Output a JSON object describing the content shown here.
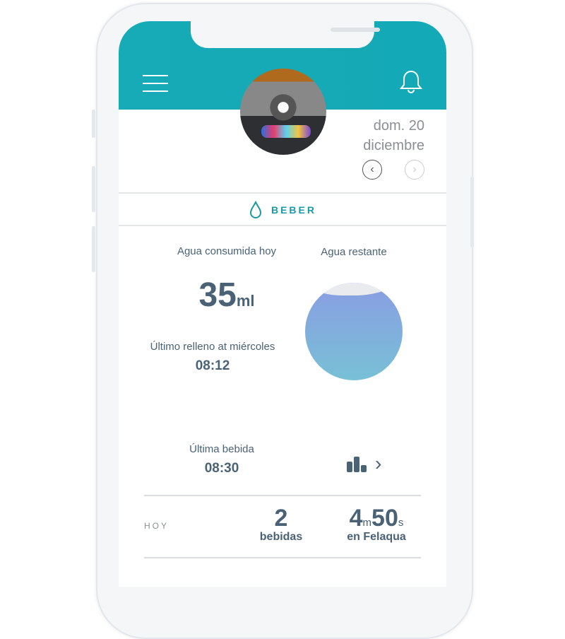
{
  "header": {
    "menu_icon": "hamburger-icon",
    "bell_icon": "bell-icon",
    "accent": "#17aab7"
  },
  "date": {
    "line1": "dom. 20",
    "line2": "diciembre",
    "prev": "‹",
    "next": "›"
  },
  "tab": {
    "label": "BEBER",
    "icon": "water-drop-icon"
  },
  "consumed": {
    "label": "Agua consumida hoy",
    "value": "35",
    "unit": "ml"
  },
  "remaining": {
    "label": "Agua restante",
    "level_percent": 88
  },
  "refill": {
    "label": "Último relleno at miércoles",
    "time": "08:12"
  },
  "last_drink": {
    "label": "Última bebida",
    "time": "08:30",
    "chart_icon": "bar-chart-icon",
    "chevron": "›"
  },
  "today": {
    "label": "HOY",
    "drinks_count": "2",
    "drinks_label": "bebidas",
    "minutes": "4",
    "min_unit": "m",
    "seconds": "50",
    "sec_unit": "s",
    "time_label": "en Felaqua"
  }
}
